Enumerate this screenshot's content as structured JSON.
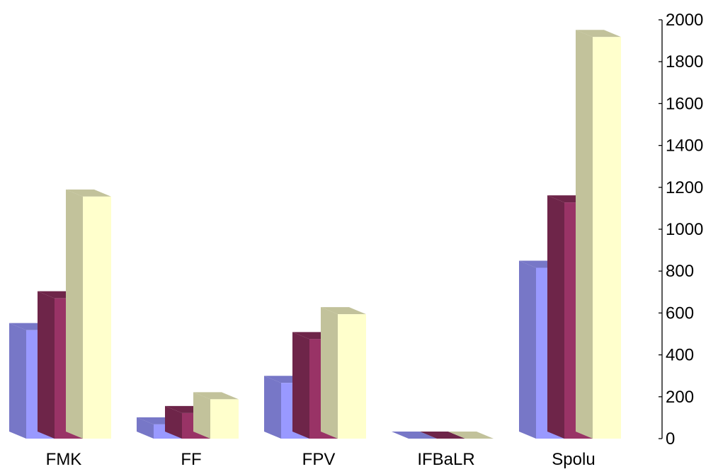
{
  "chart_data": {
    "type": "bar",
    "style": "3d-clustered-column",
    "title": "",
    "xlabel": "",
    "ylabel": "",
    "categories": [
      "FMK",
      "FF",
      "FPV",
      "IFBaLR",
      "Spolu"
    ],
    "series": [
      {
        "color": "#9999ff",
        "values": [
          518,
          68,
          266,
          0,
          816
        ]
      },
      {
        "color": "#993366",
        "values": [
          670,
          122,
          475,
          0,
          1128
        ]
      },
      {
        "color": "#ffffcc",
        "values": [
          1156,
          188,
          594,
          0,
          1918
        ]
      }
    ],
    "ylim": [
      0,
      2000
    ],
    "yticks": [
      0,
      200,
      400,
      600,
      800,
      1000,
      1200,
      1400,
      1600,
      1800,
      2000
    ],
    "yaxis_position": "right",
    "grid": false,
    "legend": "none"
  }
}
